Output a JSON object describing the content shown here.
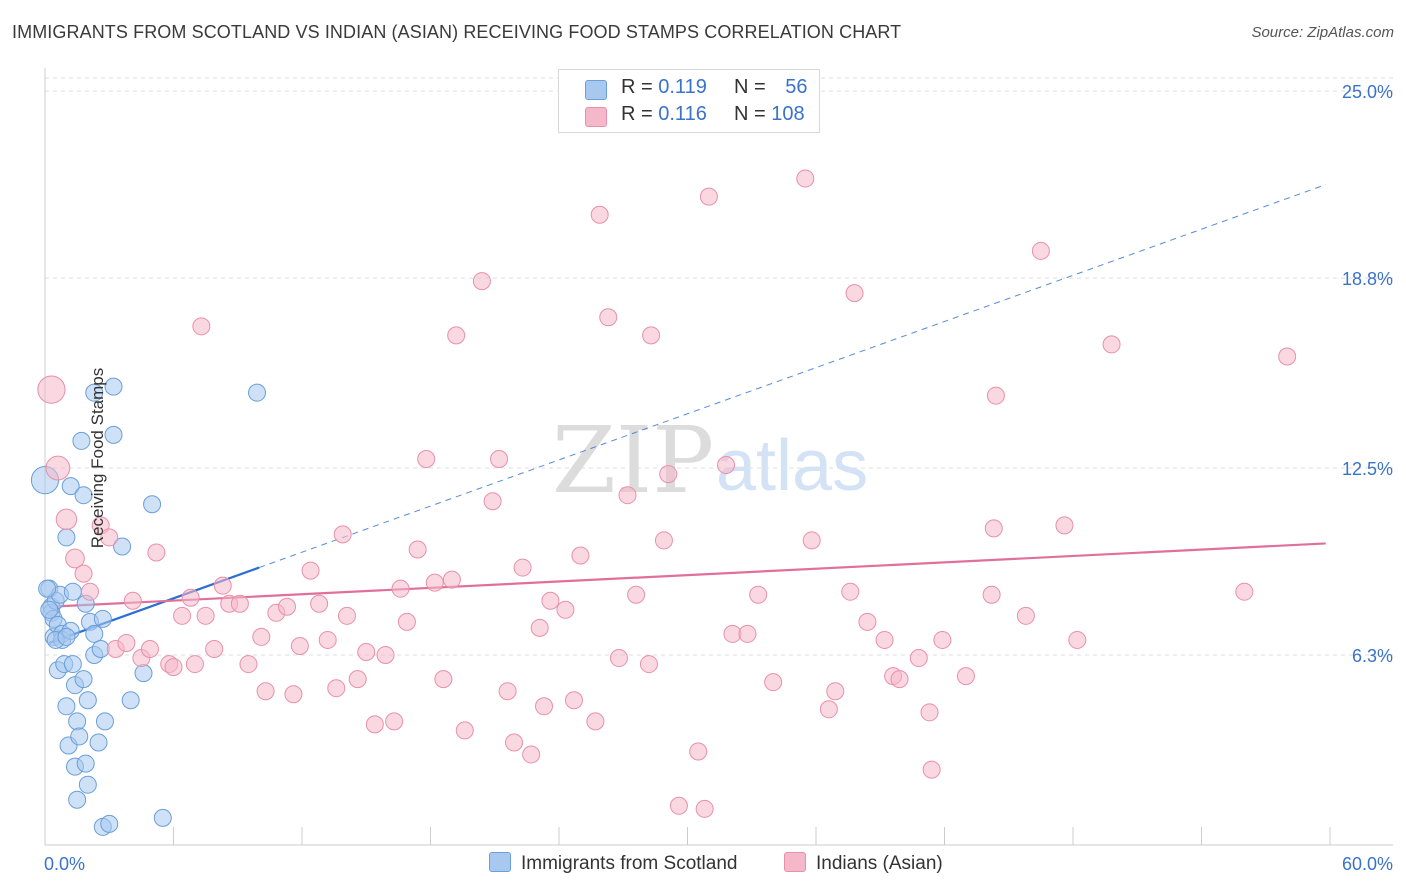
{
  "title": "IMMIGRANTS FROM SCOTLAND VS INDIAN (ASIAN) RECEIVING FOOD STAMPS CORRELATION CHART",
  "source": "Source: ZipAtlas.com",
  "watermark": {
    "zip": "ZIP",
    "atlas": "atlas"
  },
  "legend": {
    "blue": {
      "r_label": "R = ",
      "r_value": "0.119",
      "n_label": "N = ",
      "n_value": "56"
    },
    "pink": {
      "r_label": "R = ",
      "r_value": "0.116",
      "n_label": "N = ",
      "n_value": "108"
    }
  },
  "bottom_legend": {
    "blue": "Immigrants from Scotland",
    "pink": "Indians (Asian)"
  },
  "colors": {
    "blue_fill": "#a8c8f0",
    "blue_stroke": "#6a9fd8",
    "blue_line": "#2b6fd0",
    "pink_fill": "#f5b8ca",
    "pink_stroke": "#e890ab",
    "pink_line": "#e0709a",
    "tick_text": "#3a73c9",
    "grid": "#dddddd"
  },
  "chart_data": {
    "type": "scatter",
    "title": "IMMIGRANTS FROM SCOTLAND VS INDIAN (ASIAN) RECEIVING FOOD STAMPS CORRELATION CHART",
    "xlabel": "",
    "ylabel": "Receiving Food Stamps",
    "xlim": [
      0,
      60
    ],
    "ylim": [
      0,
      25.7
    ],
    "x_tick_labels": {
      "left": "0.0%",
      "right": "60.0%"
    },
    "y_ticks": [
      {
        "value": 6.3,
        "label": "6.3%"
      },
      {
        "value": 12.5,
        "label": "12.5%"
      },
      {
        "value": 18.8,
        "label": "18.8%"
      },
      {
        "value": 25.0,
        "label": "25.0%"
      }
    ],
    "series": [
      {
        "name": "Immigrants from Scotland",
        "color": "blue",
        "r": 0.119,
        "n": 56,
        "trend": {
          "x0": 0.2,
          "y0": 6.7,
          "x1": 10.0,
          "y1": 9.2,
          "ext_x1": 59.8,
          "ext_y1": 21.9
        },
        "points": [
          [
            0.0,
            12.1,
            1.6
          ],
          [
            0.2,
            8.5,
            1
          ],
          [
            0.3,
            7.9,
            1
          ],
          [
            0.3,
            7.7,
            1
          ],
          [
            0.4,
            6.9,
            1
          ],
          [
            0.4,
            7.5,
            1
          ],
          [
            0.5,
            8.1,
            1
          ],
          [
            0.6,
            7.3,
            1
          ],
          [
            0.6,
            5.8,
            1
          ],
          [
            0.7,
            8.3,
            1
          ],
          [
            0.8,
            7.0,
            1
          ],
          [
            0.8,
            6.8,
            1
          ],
          [
            0.9,
            6.0,
            1
          ],
          [
            1.0,
            10.2,
            1
          ],
          [
            1.0,
            4.6,
            1
          ],
          [
            1.1,
            3.3,
            1
          ],
          [
            1.2,
            7.1,
            1
          ],
          [
            1.2,
            11.9,
            1
          ],
          [
            1.3,
            6.0,
            1
          ],
          [
            1.4,
            2.6,
            1
          ],
          [
            1.4,
            5.3,
            1
          ],
          [
            1.5,
            1.5,
            1
          ],
          [
            1.5,
            4.1,
            1
          ],
          [
            1.6,
            3.6,
            1
          ],
          [
            1.7,
            13.4,
            1
          ],
          [
            1.8,
            11.6,
            1
          ],
          [
            1.8,
            5.5,
            1
          ],
          [
            1.9,
            2.7,
            1
          ],
          [
            1.9,
            8.0,
            1
          ],
          [
            2.0,
            2.0,
            1
          ],
          [
            2.0,
            4.8,
            1
          ],
          [
            2.1,
            7.4,
            1
          ],
          [
            2.3,
            15.0,
            1
          ],
          [
            2.3,
            7.0,
            1
          ],
          [
            2.3,
            6.3,
            1
          ],
          [
            2.5,
            3.4,
            1
          ],
          [
            2.6,
            6.5,
            1
          ],
          [
            2.7,
            7.5,
            1
          ],
          [
            2.7,
            0.6,
            1
          ],
          [
            2.8,
            4.1,
            1
          ],
          [
            3.0,
            0.7,
            1
          ],
          [
            3.2,
            15.2,
            1
          ],
          [
            3.2,
            13.6,
            1
          ],
          [
            3.6,
            9.9,
            1
          ],
          [
            4.0,
            4.8,
            1
          ],
          [
            4.6,
            5.7,
            1
          ],
          [
            5.0,
            11.3,
            1
          ],
          [
            5.5,
            0.9,
            1
          ],
          [
            9.9,
            15.0,
            1
          ],
          [
            0.5,
            6.8,
            1
          ],
          [
            0.1,
            8.5,
            1
          ],
          [
            1.0,
            6.9,
            1
          ],
          [
            1.3,
            8.4,
            1
          ],
          [
            0.2,
            7.8,
            1
          ]
        ]
      },
      {
        "name": "Indians (Asian)",
        "color": "pink",
        "r": 0.116,
        "n": 108,
        "trend": {
          "x0": 0.2,
          "y0": 7.9,
          "x1": 59.8,
          "y1": 10.0
        },
        "points": [
          [
            0.3,
            15.1,
            1.6
          ],
          [
            0.6,
            12.5,
            1.4
          ],
          [
            1.0,
            10.8,
            1.2
          ],
          [
            1.4,
            9.5,
            1.1
          ],
          [
            1.8,
            9.0,
            1
          ],
          [
            2.1,
            8.4,
            1
          ],
          [
            2.6,
            10.6,
            1
          ],
          [
            3.0,
            10.2,
            1
          ],
          [
            3.3,
            6.5,
            1
          ],
          [
            3.8,
            6.7,
            1
          ],
          [
            4.1,
            8.1,
            1
          ],
          [
            4.5,
            6.2,
            1
          ],
          [
            4.9,
            6.5,
            1
          ],
          [
            5.2,
            9.7,
            1
          ],
          [
            5.8,
            6.0,
            1
          ],
          [
            6.0,
            5.9,
            1
          ],
          [
            6.4,
            7.6,
            1
          ],
          [
            6.8,
            8.2,
            1
          ],
          [
            7.0,
            6.0,
            1
          ],
          [
            7.3,
            17.2,
            1
          ],
          [
            7.5,
            7.6,
            1
          ],
          [
            7.9,
            6.5,
            1
          ],
          [
            8.3,
            8.6,
            1
          ],
          [
            8.6,
            8.0,
            1
          ],
          [
            9.1,
            8.0,
            1
          ],
          [
            9.5,
            6.0,
            1
          ],
          [
            10.1,
            6.9,
            1
          ],
          [
            10.3,
            5.1,
            1
          ],
          [
            10.8,
            7.7,
            1
          ],
          [
            11.3,
            7.9,
            1
          ],
          [
            11.6,
            5.0,
            1
          ],
          [
            11.9,
            6.6,
            1
          ],
          [
            12.4,
            9.1,
            1
          ],
          [
            12.8,
            8.0,
            1
          ],
          [
            13.2,
            6.8,
            1
          ],
          [
            13.6,
            5.2,
            1
          ],
          [
            13.9,
            10.3,
            1
          ],
          [
            14.1,
            7.6,
            1
          ],
          [
            14.6,
            5.5,
            1
          ],
          [
            15.0,
            6.4,
            1
          ],
          [
            15.4,
            4.0,
            1
          ],
          [
            15.9,
            6.3,
            1
          ],
          [
            16.3,
            4.1,
            1
          ],
          [
            16.6,
            8.5,
            1
          ],
          [
            16.9,
            7.4,
            1
          ],
          [
            17.4,
            9.8,
            1
          ],
          [
            17.8,
            12.8,
            1
          ],
          [
            18.2,
            8.7,
            1
          ],
          [
            18.6,
            5.5,
            1
          ],
          [
            19.0,
            8.8,
            1
          ],
          [
            19.2,
            16.9,
            1
          ],
          [
            19.6,
            3.8,
            1
          ],
          [
            20.4,
            18.7,
            1
          ],
          [
            20.9,
            11.4,
            1
          ],
          [
            21.2,
            12.8,
            1
          ],
          [
            21.6,
            5.1,
            1
          ],
          [
            21.9,
            3.4,
            1
          ],
          [
            22.3,
            9.2,
            1
          ],
          [
            22.7,
            3.0,
            1
          ],
          [
            23.1,
            7.2,
            1
          ],
          [
            23.3,
            4.6,
            1
          ],
          [
            23.6,
            8.1,
            1
          ],
          [
            24.3,
            7.8,
            1
          ],
          [
            24.7,
            4.8,
            1
          ],
          [
            25.0,
            9.6,
            1
          ],
          [
            25.7,
            4.1,
            1
          ],
          [
            25.9,
            20.9,
            1
          ],
          [
            26.3,
            17.5,
            1
          ],
          [
            26.8,
            6.2,
            1
          ],
          [
            27.2,
            11.6,
            1
          ],
          [
            27.6,
            8.3,
            1
          ],
          [
            28.2,
            6.0,
            1
          ],
          [
            28.3,
            16.9,
            1
          ],
          [
            28.9,
            10.1,
            1
          ],
          [
            29.1,
            12.3,
            1
          ],
          [
            29.6,
            1.3,
            1
          ],
          [
            30.5,
            3.1,
            1
          ],
          [
            30.8,
            1.2,
            1
          ],
          [
            31.0,
            21.5,
            1
          ],
          [
            31.8,
            12.6,
            1
          ],
          [
            32.1,
            7.0,
            1
          ],
          [
            32.8,
            7.0,
            1
          ],
          [
            33.3,
            8.3,
            1
          ],
          [
            34.0,
            5.4,
            1
          ],
          [
            35.5,
            22.1,
            1
          ],
          [
            35.8,
            10.1,
            1
          ],
          [
            36.6,
            4.5,
            1
          ],
          [
            36.9,
            5.1,
            1
          ],
          [
            37.6,
            8.4,
            1
          ],
          [
            37.8,
            18.3,
            1
          ],
          [
            38.4,
            7.4,
            1
          ],
          [
            39.2,
            6.8,
            1
          ],
          [
            39.6,
            5.6,
            1
          ],
          [
            39.9,
            5.5,
            1
          ],
          [
            40.8,
            6.2,
            1
          ],
          [
            41.3,
            4.4,
            1
          ],
          [
            41.4,
            2.5,
            1
          ],
          [
            41.9,
            6.8,
            1
          ],
          [
            43.0,
            5.6,
            1
          ],
          [
            44.2,
            8.3,
            1
          ],
          [
            44.3,
            10.5,
            1
          ],
          [
            44.4,
            14.9,
            1
          ],
          [
            45.8,
            7.6,
            1
          ],
          [
            46.5,
            19.7,
            1
          ],
          [
            47.6,
            10.6,
            1
          ],
          [
            48.2,
            6.8,
            1
          ],
          [
            49.8,
            16.6,
            1
          ],
          [
            56.0,
            8.4,
            1
          ],
          [
            58.0,
            16.2,
            1
          ]
        ]
      }
    ]
  }
}
